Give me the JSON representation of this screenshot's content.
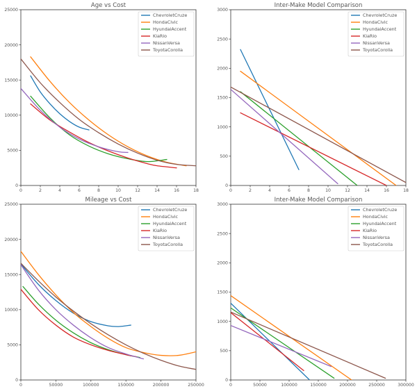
{
  "chart_data": [
    {
      "type": "line",
      "title": "Age vs Cost",
      "xlim": [
        0,
        18
      ],
      "ylim": [
        0,
        25000
      ],
      "xticks": [
        0,
        2,
        4,
        6,
        8,
        10,
        12,
        14,
        16,
        18
      ],
      "yticks": [
        0,
        5000,
        10000,
        15000,
        20000,
        25000
      ],
      "legend_position": "top-right",
      "series": [
        {
          "name": "ChevroletCruze",
          "color": "#1f77b4",
          "x": [
            1,
            2,
            3,
            4,
            5,
            6,
            7
          ],
          "y": [
            15600,
            13300,
            11600,
            10200,
            9100,
            8300,
            7900
          ]
        },
        {
          "name": "HondaCivic",
          "color": "#ff7f0e",
          "x": [
            1,
            3,
            5,
            7,
            9,
            11,
            13,
            15,
            17
          ],
          "y": [
            18300,
            14800,
            11800,
            9300,
            7200,
            5500,
            4200,
            3300,
            2800
          ]
        },
        {
          "name": "HyundaiAccent",
          "color": "#2ca02c",
          "x": [
            1,
            3,
            5,
            7,
            9,
            11,
            13,
            15
          ],
          "y": [
            12700,
            9600,
            7200,
            5600,
            4500,
            3800,
            3400,
            3700
          ]
        },
        {
          "name": "KiaRio",
          "color": "#d62728",
          "x": [
            1,
            3,
            5,
            7,
            9,
            11,
            13,
            14,
            16
          ],
          "y": [
            11600,
            9300,
            7600,
            6100,
            4900,
            3900,
            3100,
            2800,
            2500
          ]
        },
        {
          "name": "NissanVersa",
          "color": "#9467bd",
          "x": [
            0,
            2,
            4,
            6,
            8,
            10,
            11
          ],
          "y": [
            13800,
            10700,
            8300,
            6600,
            5500,
            4800,
            4700
          ]
        },
        {
          "name": "ToyotaCorolla",
          "color": "#8c564b",
          "x": [
            0,
            2,
            4,
            6,
            8,
            10,
            12,
            14,
            16,
            18
          ],
          "y": [
            18000,
            14600,
            11800,
            9400,
            7500,
            5900,
            4600,
            3600,
            3000,
            2800
          ]
        }
      ]
    },
    {
      "type": "line",
      "title": "Inter-Make Model Comparison",
      "xlim": [
        0,
        18
      ],
      "ylim": [
        0,
        3000
      ],
      "xticks": [
        0,
        2,
        4,
        6,
        8,
        10,
        12,
        14,
        16,
        18
      ],
      "yticks": [
        0,
        500,
        1000,
        1500,
        2000,
        2500,
        3000
      ],
      "legend_position": "top-right",
      "series": [
        {
          "name": "ChevroletCruze",
          "color": "#1f77b4",
          "x": [
            1,
            7
          ],
          "y": [
            2320,
            270
          ]
        },
        {
          "name": "HondaCivic",
          "color": "#ff7f0e",
          "x": [
            1,
            17
          ],
          "y": [
            1950,
            0
          ]
        },
        {
          "name": "HyundaiAccent",
          "color": "#2ca02c",
          "x": [
            1,
            13
          ],
          "y": [
            1600,
            0
          ]
        },
        {
          "name": "KiaRio",
          "color": "#d62728",
          "x": [
            1,
            16
          ],
          "y": [
            1240,
            0
          ]
        },
        {
          "name": "NissanVersa",
          "color": "#9467bd",
          "x": [
            0,
            11
          ],
          "y": [
            1640,
            30
          ]
        },
        {
          "name": "ToyotaCorolla",
          "color": "#8c564b",
          "x": [
            0,
            18
          ],
          "y": [
            1680,
            50
          ]
        }
      ]
    },
    {
      "type": "line",
      "title": "Mileage vs Cost",
      "xlim": [
        0,
        250000
      ],
      "ylim": [
        0,
        25000
      ],
      "xticks": [
        0,
        50000,
        100000,
        150000,
        200000,
        250000
      ],
      "yticks": [
        0,
        5000,
        10000,
        15000,
        20000,
        25000
      ],
      "legend_position": "top-right",
      "series": [
        {
          "name": "ChevroletCruze",
          "color": "#1f77b4",
          "x": [
            0,
            25000,
            50000,
            75000,
            100000,
            125000,
            140000,
            157000
          ],
          "y": [
            16500,
            13600,
            11300,
            9500,
            8300,
            7700,
            7600,
            7800
          ]
        },
        {
          "name": "HondaCivic",
          "color": "#ff7f0e",
          "x": [
            0,
            25000,
            50000,
            75000,
            100000,
            125000,
            150000,
            175000,
            200000,
            225000,
            250000
          ],
          "y": [
            18300,
            15000,
            12100,
            9600,
            7600,
            5900,
            4600,
            3900,
            3500,
            3500,
            4000
          ]
        },
        {
          "name": "HyundaiAccent",
          "color": "#2ca02c",
          "x": [
            3000,
            25000,
            50000,
            75000,
            100000,
            125000,
            150000,
            170000
          ],
          "y": [
            13300,
            10800,
            8500,
            6700,
            5300,
            4300,
            3600,
            3200
          ]
        },
        {
          "name": "KiaRio",
          "color": "#d62728",
          "x": [
            0,
            25000,
            50000,
            75000,
            100000,
            125000,
            150000,
            165000
          ],
          "y": [
            12900,
            10000,
            7800,
            6100,
            5000,
            4200,
            3600,
            3300
          ]
        },
        {
          "name": "NissanVersa",
          "color": "#9467bd",
          "x": [
            0,
            25000,
            50000,
            75000,
            100000,
            125000,
            150000,
            175000
          ],
          "y": [
            16400,
            12800,
            10000,
            7800,
            6000,
            4600,
            3700,
            3000
          ]
        },
        {
          "name": "ToyotaCorolla",
          "color": "#8c564b",
          "x": [
            0,
            25000,
            50000,
            75000,
            100000,
            125000,
            150000,
            175000,
            200000,
            225000,
            250000
          ],
          "y": [
            16600,
            14100,
            11800,
            9800,
            8000,
            6400,
            5000,
            3800,
            2800,
            2000,
            1500
          ]
        }
      ]
    },
    {
      "type": "line",
      "title": "Inter-Make Model Comparison",
      "xlim": [
        0,
        300000
      ],
      "ylim": [
        0,
        3000
      ],
      "xticks": [
        0,
        50000,
        100000,
        150000,
        200000,
        250000,
        300000
      ],
      "yticks": [
        0,
        500,
        1000,
        1500,
        2000,
        2500,
        3000
      ],
      "legend_position": "top-right",
      "series": [
        {
          "name": "ChevroletCruze",
          "color": "#1f77b4",
          "x": [
            0,
            135000
          ],
          "y": [
            1310,
            0
          ]
        },
        {
          "name": "HondaCivic",
          "color": "#ff7f0e",
          "x": [
            0,
            207000
          ],
          "y": [
            1440,
            0
          ]
        },
        {
          "name": "HyundaiAccent",
          "color": "#2ca02c",
          "x": [
            0,
            177000
          ],
          "y": [
            1230,
            30
          ]
        },
        {
          "name": "KiaRio",
          "color": "#d62728",
          "x": [
            0,
            125000
          ],
          "y": [
            1150,
            160
          ]
        },
        {
          "name": "NissanVersa",
          "color": "#9467bd",
          "x": [
            0,
            172000
          ],
          "y": [
            930,
            230
          ]
        },
        {
          "name": "ToyotaCorolla",
          "color": "#8c564b",
          "x": [
            0,
            265000
          ],
          "y": [
            1160,
            30
          ]
        }
      ]
    }
  ]
}
